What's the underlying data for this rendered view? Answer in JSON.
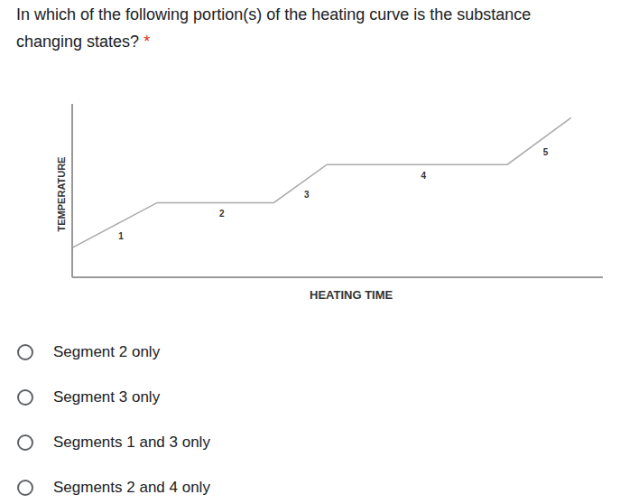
{
  "question": {
    "lines": [
      "In which of the following portion(s) of the heating curve is the substance",
      "changing states?"
    ],
    "required_mark": "*"
  },
  "chart_data": {
    "type": "line",
    "x_label": "HEATING TIME",
    "y_label": "TEMPERATURE",
    "x": [
      0,
      16,
      38,
      48,
      82,
      94
    ],
    "values": [
      17,
      43,
      43,
      65,
      65,
      92
    ],
    "xlim": [
      0,
      100
    ],
    "ylim": [
      0,
      100
    ],
    "tick_labels": false,
    "segment_labels": [
      "1",
      "2",
      "3",
      "4",
      "5"
    ],
    "color": "#aaaaaa"
  },
  "options": [
    "Segment 2 only",
    "Segment 3 only",
    "Segments 1 and 3 only",
    "Segments 2 and 4 only"
  ]
}
